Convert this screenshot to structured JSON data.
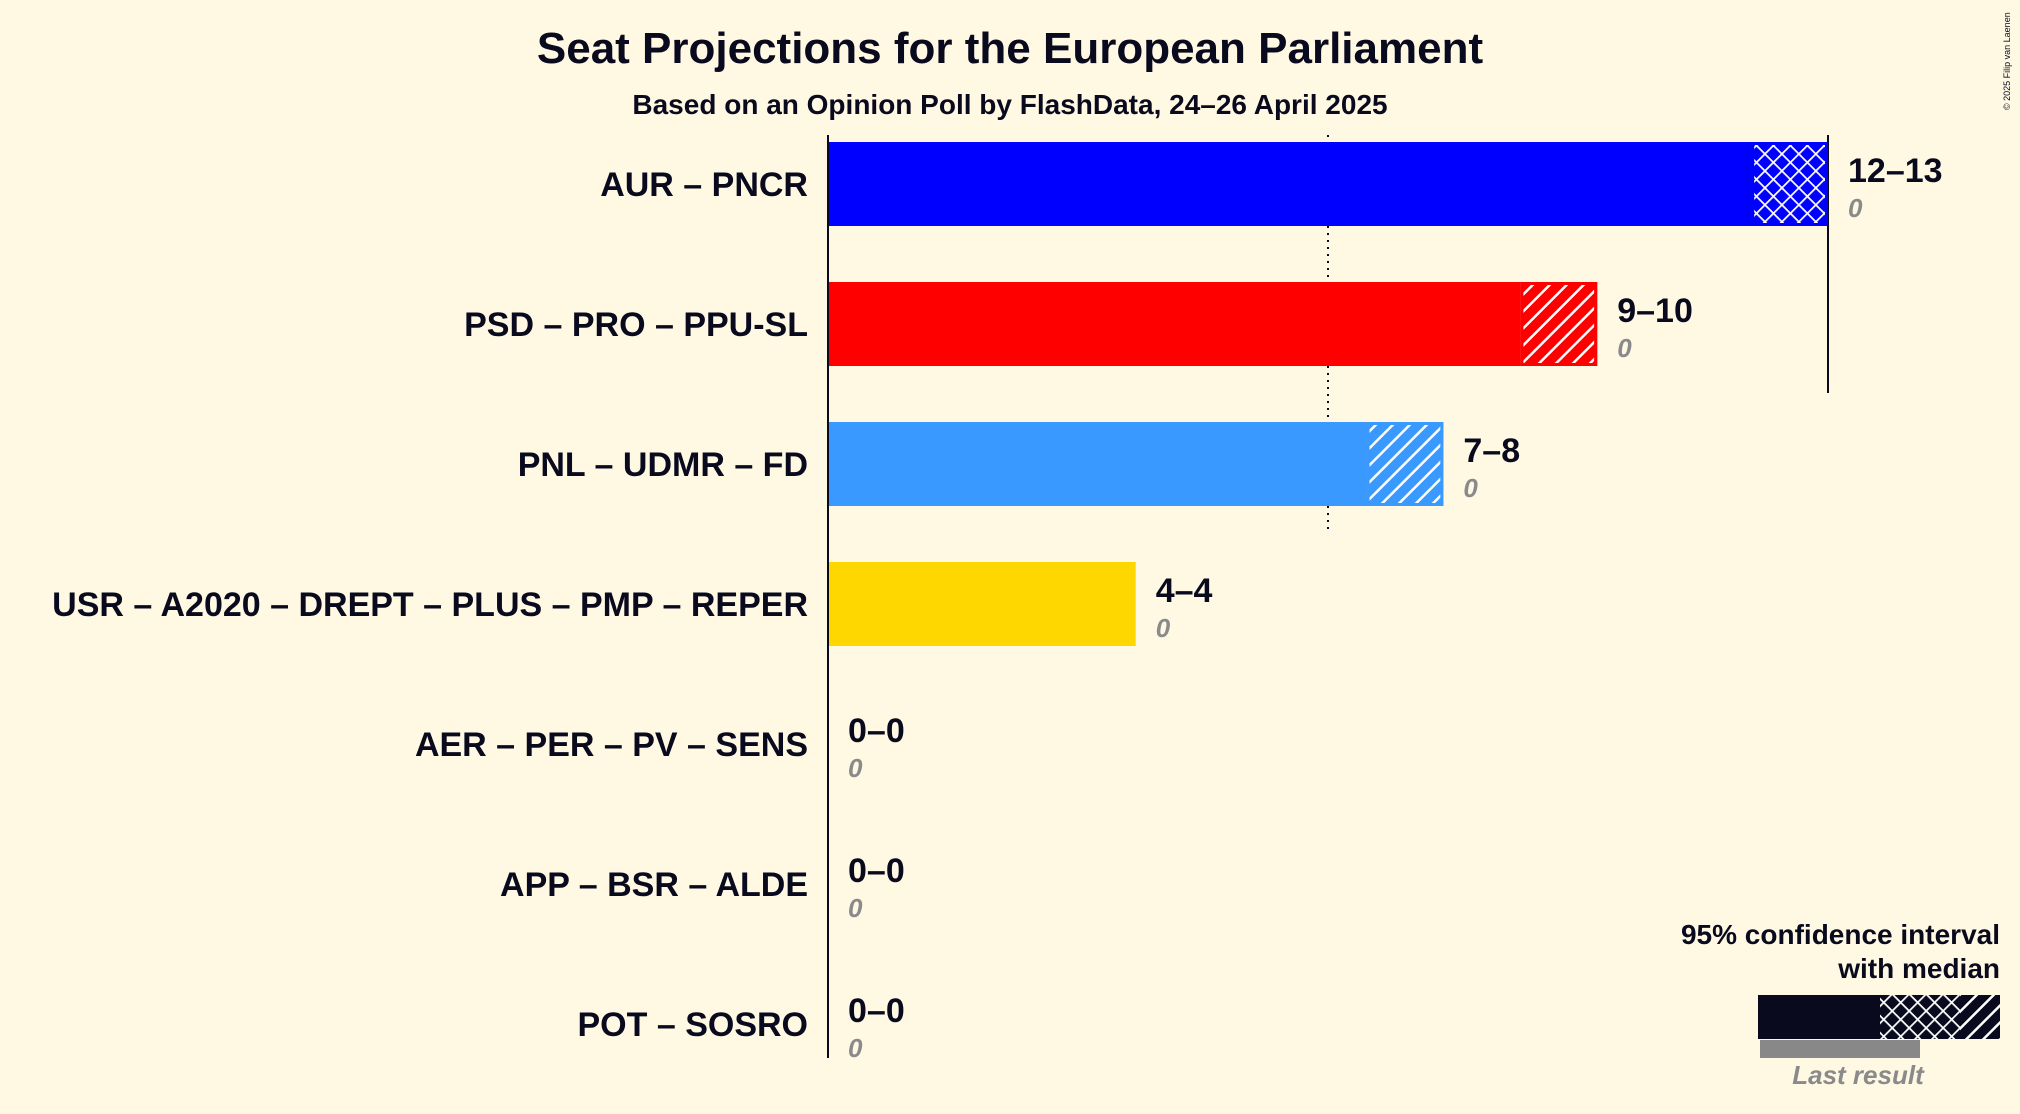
{
  "copyright": "© 2025 Filip van Laenen",
  "legend": {
    "line1": "95% confidence interval",
    "line2": "with median",
    "last_result": "Last result"
  },
  "chart_data": {
    "type": "bar",
    "orientation": "horizontal",
    "title": "Seat Projections for the European Parliament",
    "subtitle": "Based on an Opinion Poll by FlashData, 24–26 April 2025",
    "xlim": [
      0,
      13
    ],
    "reference_lines": [
      {
        "value": 6.5,
        "style": "dotted"
      },
      {
        "value": 13,
        "style": "solid"
      }
    ],
    "series": [
      {
        "party": "AUR – PNCR",
        "low": 12,
        "high": 13,
        "range_label": "12–13",
        "last_result": 0,
        "last_label": "0",
        "color": "#0000ff",
        "pattern": "cross"
      },
      {
        "party": "PSD – PRO – PPU-SL",
        "low": 9,
        "high": 10,
        "range_label": "9–10",
        "last_result": 0,
        "last_label": "0",
        "color": "#ff0000",
        "pattern": "diag"
      },
      {
        "party": "PNL – UDMR – FD",
        "low": 7,
        "high": 8,
        "range_label": "7–8",
        "last_result": 0,
        "last_label": "0",
        "color": "#3a99ff",
        "pattern": "diag"
      },
      {
        "party": "USR – A2020 – DREPT – PLUS – PMP – REPER",
        "low": 4,
        "high": 4,
        "range_label": "4–4",
        "last_result": 0,
        "last_label": "0",
        "color": "#ffd700",
        "pattern": "none"
      },
      {
        "party": "AER – PER – PV – SENS",
        "low": 0,
        "high": 0,
        "range_label": "0–0",
        "last_result": 0,
        "last_label": "0",
        "color": "#888888",
        "pattern": "none"
      },
      {
        "party": "APP – BSR – ALDE",
        "low": 0,
        "high": 0,
        "range_label": "0–0",
        "last_result": 0,
        "last_label": "0",
        "color": "#888888",
        "pattern": "none"
      },
      {
        "party": "POT – SOSRO",
        "low": 0,
        "high": 0,
        "range_label": "0–0",
        "last_result": 0,
        "last_label": "0",
        "color": "#888888",
        "pattern": "none"
      }
    ]
  }
}
